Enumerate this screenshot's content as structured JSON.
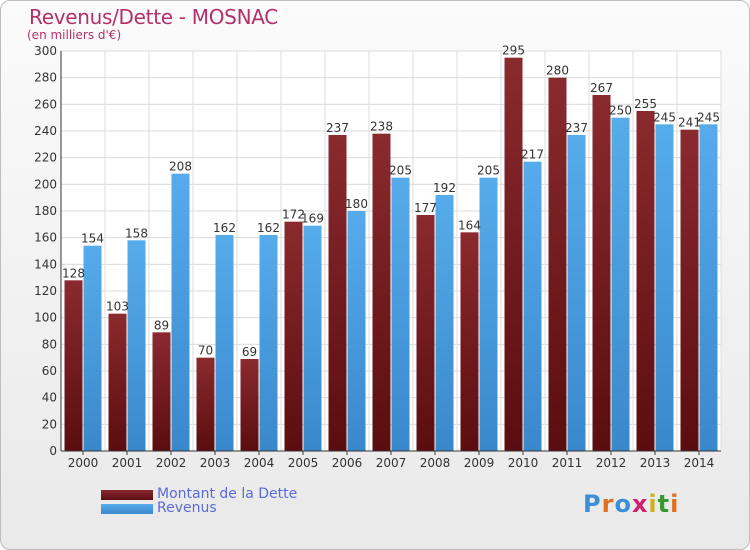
{
  "header": {
    "title": "Revenus/Dette - MOSNAC",
    "subtitle": "(en milliers d'€)"
  },
  "colors": {
    "dette": "#7a1f22",
    "revenus": "#4b9fe0",
    "title": "#b4306a",
    "legend_text": "#5a6bd8"
  },
  "chart_data": {
    "type": "bar",
    "title": "Revenus/Dette - MOSNAC",
    "ylabel": "(en milliers d'€)",
    "xlabel": "",
    "categories": [
      "2000",
      "2001",
      "2002",
      "2003",
      "2004",
      "2005",
      "2006",
      "2007",
      "2008",
      "2009",
      "2010",
      "2011",
      "2012",
      "2013",
      "2014"
    ],
    "series": [
      {
        "name": "Montant de la Dette",
        "values": [
          128,
          103,
          89,
          70,
          69,
          172,
          237,
          238,
          177,
          164,
          295,
          280,
          267,
          255,
          241
        ]
      },
      {
        "name": "Revenus",
        "values": [
          154,
          158,
          208,
          162,
          162,
          169,
          180,
          205,
          192,
          205,
          217,
          237,
          250,
          245,
          245
        ]
      }
    ],
    "ylim": [
      0,
      300
    ],
    "yticks": [
      0,
      20,
      40,
      60,
      80,
      100,
      120,
      140,
      160,
      180,
      200,
      220,
      240,
      260,
      280,
      300
    ],
    "grid": true,
    "legend_position": "bottom-left"
  },
  "legend": {
    "items": [
      {
        "label": "Montant de la Dette"
      },
      {
        "label": "Revenus"
      }
    ]
  },
  "logo": {
    "text": "Proxiti",
    "letter_colors": [
      "#3a8fd8",
      "#e07020",
      "#3a8fd8",
      "#d02070",
      "#d0b020",
      "#3a9a30",
      "#e07020"
    ]
  }
}
